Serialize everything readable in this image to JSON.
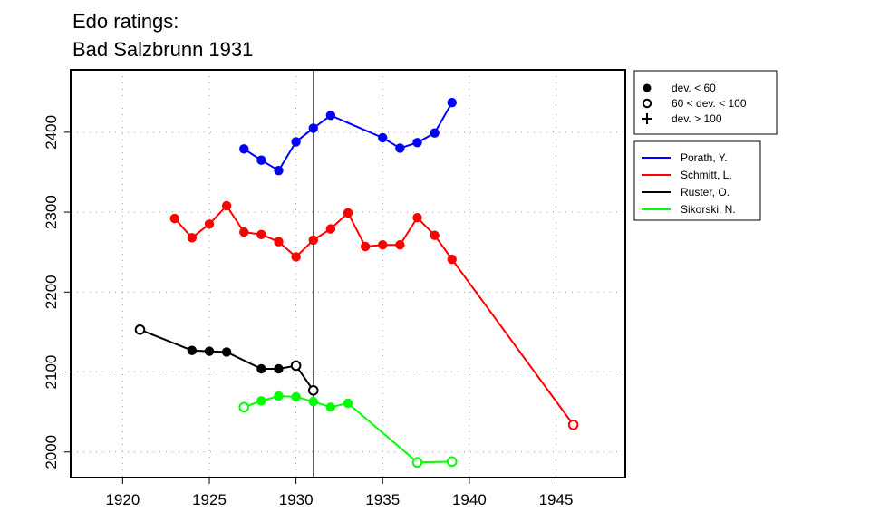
{
  "title_line1": "Edo ratings:",
  "title_line2": "Bad Salzbrunn 1931",
  "chart_data": {
    "type": "line",
    "title": "Edo ratings: Bad Salzbrunn 1931",
    "xlabel": "",
    "ylabel": "",
    "xlim": [
      1917,
      1949
    ],
    "ylim": [
      1968,
      2478
    ],
    "x_ticks": [
      1920,
      1925,
      1930,
      1935,
      1940,
      1945
    ],
    "y_ticks": [
      2000,
      2100,
      2200,
      2300,
      2400
    ],
    "grid": true,
    "reference_line_x": 1931,
    "marker_legend": [
      {
        "label": "dev. < 60",
        "marker": "filled-circle"
      },
      {
        "label": "60 < dev. < 100",
        "marker": "open-circle"
      },
      {
        "label": "dev. > 100",
        "marker": "plus"
      }
    ],
    "series": [
      {
        "name": "Porath, Y.",
        "color": "#0000ff",
        "x": [
          1927,
          1928,
          1929,
          1930,
          1931,
          1932,
          1935,
          1936,
          1937,
          1938,
          1939
        ],
        "y": [
          2379,
          2365,
          2352,
          2388,
          2405,
          2421,
          2393,
          2380,
          2387,
          2399,
          2437
        ],
        "markers": [
          "filled",
          "filled",
          "filled",
          "filled",
          "filled",
          "filled",
          "filled",
          "filled",
          "filled",
          "filled",
          "filled"
        ]
      },
      {
        "name": "Schmitt, L.",
        "color": "#ff0000",
        "x": [
          1923,
          1924,
          1925,
          1926,
          1927,
          1928,
          1929,
          1930,
          1931,
          1932,
          1933,
          1934,
          1935,
          1936,
          1937,
          1938,
          1939,
          1946
        ],
        "y": [
          2292,
          2268,
          2285,
          2308,
          2275,
          2272,
          2263,
          2244,
          2265,
          2279,
          2299,
          2257,
          2259,
          2259,
          2293,
          2271,
          2241,
          2034
        ],
        "markers": [
          "filled",
          "filled",
          "filled",
          "filled",
          "filled",
          "filled",
          "filled",
          "filled",
          "filled",
          "filled",
          "filled",
          "filled",
          "filled",
          "filled",
          "filled",
          "filled",
          "filled",
          "open"
        ]
      },
      {
        "name": "Ruster, O.",
        "color": "#000000",
        "x": [
          1921,
          1924,
          1925,
          1926,
          1928,
          1929,
          1930,
          1931
        ],
        "y": [
          2153,
          2127,
          2126,
          2125,
          2104,
          2104,
          2108,
          2077
        ],
        "markers": [
          "open",
          "filled",
          "filled",
          "filled",
          "filled",
          "filled",
          "open",
          "open"
        ]
      },
      {
        "name": "Sikorski, N.",
        "color": "#00ff00",
        "x": [
          1927,
          1928,
          1929,
          1930,
          1931,
          1932,
          1933,
          1937,
          1939
        ],
        "y": [
          2056,
          2064,
          2070,
          2069,
          2063,
          2056,
          2061,
          1987,
          1988
        ],
        "markers": [
          "open",
          "filled",
          "filled",
          "filled",
          "filled",
          "filled",
          "filled",
          "open",
          "open"
        ]
      }
    ]
  }
}
